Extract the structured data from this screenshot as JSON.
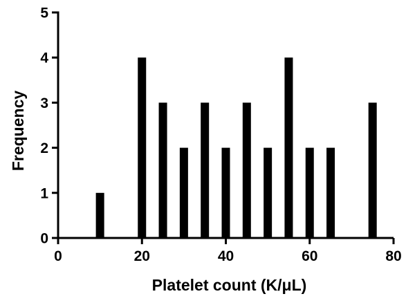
{
  "chart_data": {
    "type": "bar",
    "xlabel": "Platelet count (K/μL)",
    "ylabel": "Frequency",
    "x": [
      10,
      20,
      25,
      30,
      35,
      40,
      45,
      50,
      55,
      60,
      65,
      75
    ],
    "values": [
      1,
      4,
      3,
      2,
      3,
      2,
      3,
      2,
      4,
      2,
      2,
      3
    ],
    "xlim": [
      0,
      80
    ],
    "ylim": [
      0,
      5
    ],
    "xticks": [
      0,
      20,
      40,
      60,
      80
    ],
    "yticks": [
      0,
      1,
      2,
      3,
      4,
      5
    ],
    "bar_color": "#000000",
    "grid": false,
    "legend": "none"
  }
}
